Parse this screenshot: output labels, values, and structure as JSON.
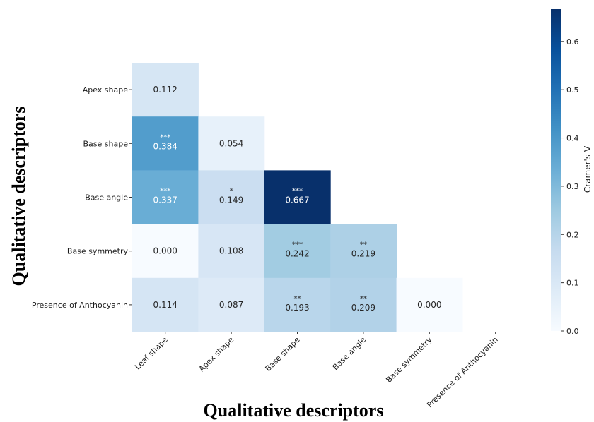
{
  "chart_data": {
    "type": "heatmap",
    "xlabel": "Qualitative descriptors",
    "ylabel": "Qualitative descriptors",
    "x_categories": [
      "Leaf shape",
      "Apex shape",
      "Base shape",
      "Base angle",
      "Base symmetry",
      "Presence of Anthocyanin"
    ],
    "y_categories": [
      "Apex shape",
      "Base shape",
      "Base angle",
      "Base symmetry",
      "Presence of Anthocyanin"
    ],
    "cells": [
      [
        {
          "value": 0.112,
          "label": "0.112",
          "sig": ""
        }
      ],
      [
        {
          "value": 0.384,
          "label": "0.384",
          "sig": "***"
        },
        {
          "value": 0.054,
          "label": "0.054",
          "sig": ""
        }
      ],
      [
        {
          "value": 0.337,
          "label": "0.337",
          "sig": "***"
        },
        {
          "value": 0.149,
          "label": "0.149",
          "sig": "*"
        },
        {
          "value": 0.667,
          "label": "0.667",
          "sig": "***"
        }
      ],
      [
        {
          "value": 0.0,
          "label": "0.000",
          "sig": ""
        },
        {
          "value": 0.108,
          "label": "0.108",
          "sig": ""
        },
        {
          "value": 0.242,
          "label": "0.242",
          "sig": "***"
        },
        {
          "value": 0.219,
          "label": "0.219",
          "sig": "**"
        }
      ],
      [
        {
          "value": 0.114,
          "label": "0.114",
          "sig": ""
        },
        {
          "value": 0.087,
          "label": "0.087",
          "sig": ""
        },
        {
          "value": 0.193,
          "label": "0.193",
          "sig": "**"
        },
        {
          "value": 0.209,
          "label": "0.209",
          "sig": "**"
        },
        {
          "value": 0.0,
          "label": "0.000",
          "sig": ""
        }
      ]
    ],
    "colorbar": {
      "label": "Cramer's V",
      "range": [
        0.0,
        0.667
      ],
      "ticks": [
        "0.0",
        "0.1",
        "0.2",
        "0.3",
        "0.4",
        "0.5",
        "0.6"
      ],
      "colormap": "Blues",
      "color_low": "#f7fbff",
      "color_high": "#08306b"
    },
    "grid": false,
    "legend": "right"
  }
}
